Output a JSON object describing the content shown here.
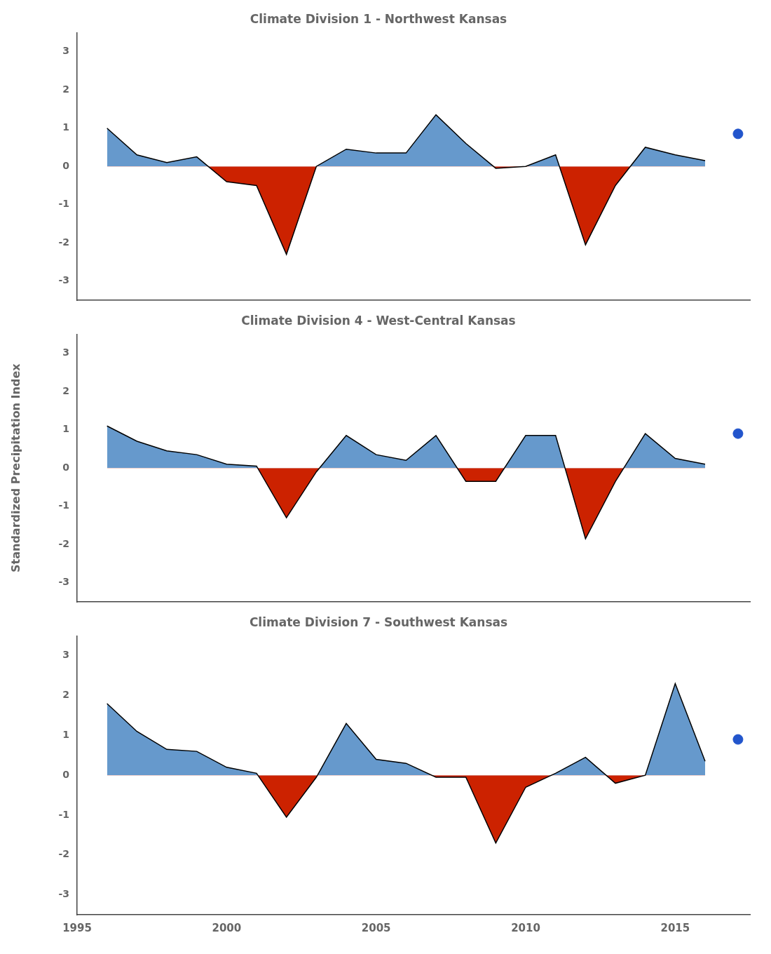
{
  "chart_data": [
    {
      "type": "area",
      "title": "Climate Division 1 - Northwest Kansas",
      "x": [
        1996,
        1997,
        1998,
        1999,
        2000,
        2001,
        2002,
        2003,
        2004,
        2005,
        2006,
        2007,
        2008,
        2009,
        2010,
        2011,
        2012,
        2013,
        2014,
        2015,
        2016
      ],
      "series": [
        {
          "values": [
            1.0,
            0.3,
            0.1,
            0.25,
            -0.4,
            -0.5,
            -2.3,
            0.0,
            0.45,
            0.35,
            0.35,
            1.35,
            0.6,
            -0.05,
            0.0,
            0.3,
            -2.05,
            -0.5,
            0.5,
            0.3,
            0.15
          ],
          "color": "#000000",
          "colors": [
            "#6699CC",
            "#CC2200"
          ]
        },
        {
          "type": "scatter",
          "x": [
            2017.1
          ],
          "values": [
            0.85
          ],
          "color": "#2255CC",
          "marker": "o"
        }
      ],
      "xlim": [
        1995,
        2017.5
      ],
      "xticks": [
        1995,
        2000,
        2005,
        2010,
        2015
      ],
      "ylim": [
        -3.5,
        3.5
      ],
      "yticks": [
        -3,
        -2,
        -1,
        0,
        1,
        2,
        3
      ],
      "grid": false,
      "tick_labels": "y"
    },
    {
      "type": "area",
      "title": "Climate Division 4 - West-Central Kansas",
      "ylabel": "Standardized Precipitation Index",
      "x": [
        1996,
        1997,
        1998,
        1999,
        2000,
        2001,
        2002,
        2003,
        2004,
        2005,
        2006,
        2007,
        2008,
        2009,
        2010,
        2011,
        2012,
        2013,
        2014,
        2015,
        2016
      ],
      "series": [
        {
          "values": [
            1.1,
            0.7,
            0.45,
            0.35,
            0.1,
            0.05,
            -1.3,
            -0.1,
            0.85,
            0.35,
            0.2,
            0.85,
            -0.35,
            -0.35,
            0.85,
            0.85,
            -1.85,
            -0.35,
            0.9,
            0.25,
            0.1
          ],
          "color": "#000000",
          "colors": [
            "#6699CC",
            "#CC2200"
          ]
        },
        {
          "type": "scatter",
          "x": [
            2017.1
          ],
          "values": [
            0.9
          ],
          "color": "#2255CC",
          "marker": "o"
        }
      ],
      "xlim": [
        1995,
        2017.5
      ],
      "xticks": [
        1995,
        2000,
        2005,
        2010,
        2015
      ],
      "ylim": [
        -3.5,
        3.5
      ],
      "yticks": [
        -3,
        -2,
        -1,
        0,
        1,
        2,
        3
      ],
      "grid": false,
      "tick_labels": "y"
    },
    {
      "type": "area",
      "title": "Climate Division 7 - Southwest Kansas",
      "x": [
        1996,
        1997,
        1998,
        1999,
        2000,
        2001,
        2002,
        2003,
        2004,
        2005,
        2006,
        2007,
        2008,
        2009,
        2010,
        2011,
        2012,
        2013,
        2014,
        2015,
        2016
      ],
      "series": [
        {
          "values": [
            1.8,
            1.1,
            0.65,
            0.6,
            0.2,
            0.05,
            -1.05,
            -0.05,
            1.3,
            0.4,
            0.3,
            -0.05,
            -0.05,
            -1.7,
            -0.3,
            0.05,
            0.45,
            -0.2,
            0.0,
            2.3,
            0.35
          ],
          "color": "#000000",
          "colors": [
            "#6699CC",
            "#CC2200"
          ]
        },
        {
          "type": "scatter",
          "x": [
            2017.1
          ],
          "values": [
            0.9
          ],
          "color": "#2255CC",
          "marker": "o"
        }
      ],
      "xlim": [
        1995,
        2017.5
      ],
      "xticks": [
        1995,
        2000,
        2005,
        2010,
        2015
      ],
      "ylim": [
        -3.5,
        3.5
      ],
      "yticks": [
        -3,
        -2,
        -1,
        0,
        1,
        2,
        3
      ],
      "grid": false
    }
  ]
}
